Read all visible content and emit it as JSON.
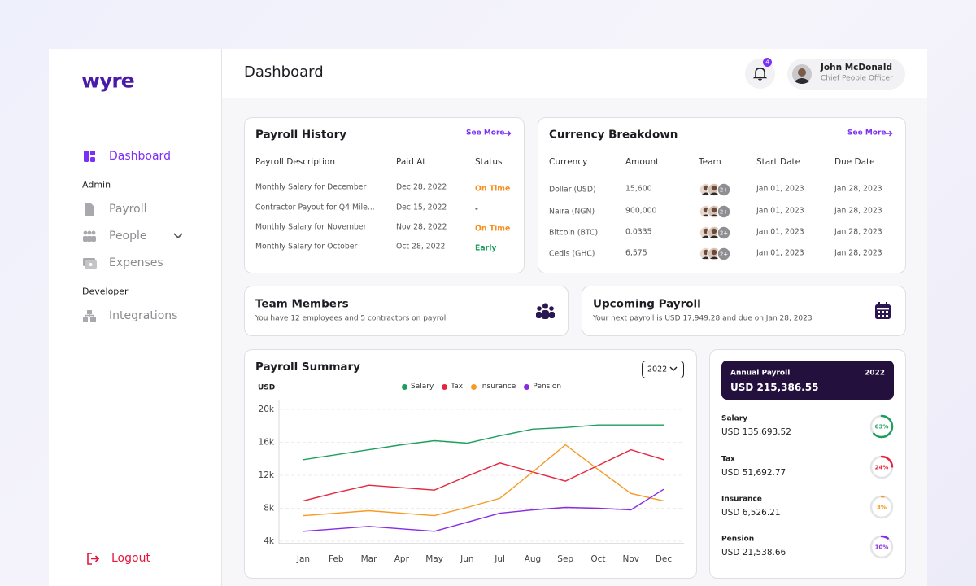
{
  "sidebar": {
    "brand": "wyre",
    "active": "Dashboard",
    "sections": [
      {
        "title": "Admin",
        "items": [
          "Payroll",
          "People",
          "Expenses"
        ]
      },
      {
        "title": "Developer",
        "items": [
          "Integrations"
        ]
      }
    ],
    "logout": "Logout"
  },
  "header": {
    "title": "Dashboard",
    "notifications": 4,
    "user": {
      "name": "John McDonald",
      "role": "Chief People Officer"
    }
  },
  "payroll_history": {
    "title": "Payroll History",
    "link": "See More",
    "columns": [
      "Payroll Description",
      "Paid At",
      "Status"
    ],
    "rows": [
      {
        "description": "Monthly Salary for December",
        "paid_at": "Dec 28, 2022",
        "status": "On Time",
        "status_color": "#f5901e"
      },
      {
        "description": "Contractor Payout for Q4 Mile...",
        "paid_at": "Dec 15, 2022",
        "status": "-",
        "status_color": "#555555"
      },
      {
        "description": "Monthly Salary for November",
        "paid_at": "Nov 28, 2022",
        "status": "On Time",
        "status_color": "#f5901e"
      },
      {
        "description": "Monthly Salary for October",
        "paid_at": "Oct 28, 2022",
        "status": "Early",
        "status_color": "#1e9e5e"
      }
    ]
  },
  "currency_breakdown": {
    "title": "Currency Breakdown",
    "link": "See More",
    "columns": [
      "Currency",
      "Amount",
      "Team",
      "Start Date",
      "Due Date"
    ],
    "rows": [
      {
        "currency": "Dollar (USD)",
        "amount": "15,600",
        "team": "2+",
        "start_date": "Jan 01, 2023",
        "due_date": "Jan 28, 2023"
      },
      {
        "currency": "Naira (NGN)",
        "amount": "900,000",
        "team": "2+",
        "start_date": "Jan 01, 2023",
        "due_date": "Jan 28, 2023"
      },
      {
        "currency": "Bitcoin (BTC)",
        "amount": "0.0335",
        "team": "2+",
        "start_date": "Jan 01, 2023",
        "due_date": "Jan 28, 2023"
      },
      {
        "currency": "Cedis (GHC)",
        "amount": "6,575",
        "team": "2+",
        "start_date": "Jan 01, 2023",
        "due_date": "Jan 28, 2023"
      }
    ]
  },
  "team_members": {
    "title": "Team Members",
    "text": "You have 12 employees and 5 contractors on payroll"
  },
  "upcoming_payroll": {
    "title": "Upcoming Payroll",
    "text": "Your next payroll is USD 17,949.28 and due on Jan 28, 2023"
  },
  "payroll_summary": {
    "year": "2022"
  },
  "chart_data": {
    "type": "line",
    "title": "Payroll Summary",
    "y_label": "USD",
    "categories": [
      "Jan",
      "Feb",
      "Mar",
      "Apr",
      "May",
      "Jun",
      "Jul",
      "Aug",
      "Sep",
      "Oct",
      "Nov",
      "Dec"
    ],
    "series": [
      {
        "name": "Salary",
        "color": "#1e9e5e",
        "values": [
          13900,
          14500,
          15100,
          15700,
          16200,
          15900,
          16800,
          17600,
          17800,
          18100,
          18100,
          18100
        ]
      },
      {
        "name": "Tax",
        "color": "#e5263f",
        "values": [
          8900,
          9900,
          10800,
          10500,
          10200,
          11900,
          13500,
          12400,
          11300,
          13200,
          15100,
          13900
        ]
      },
      {
        "name": "Insurance",
        "color": "#f59a23",
        "values": [
          7100,
          7400,
          7700,
          7400,
          7100,
          8100,
          9200,
          12400,
          15700,
          12700,
          9800,
          8900
        ]
      },
      {
        "name": "Pension",
        "color": "#8a2be2",
        "values": [
          5200,
          5500,
          5800,
          5500,
          5200,
          6300,
          7400,
          7800,
          8100,
          8000,
          7800,
          10300
        ]
      }
    ],
    "ylim": [
      4000,
      20000
    ],
    "yticks": [
      {
        "value": 4000,
        "label": "4k"
      },
      {
        "value": 8000,
        "label": "8k"
      },
      {
        "value": 12000,
        "label": "12k"
      },
      {
        "value": 16000,
        "label": "16k"
      },
      {
        "value": 20000,
        "label": "20k"
      }
    ],
    "grid": true
  },
  "annual_payroll": {
    "title": "Annual Payroll",
    "year": "2022",
    "total": "USD 215,386.55",
    "items": [
      {
        "name": "Salary",
        "amount": "USD 135,693.52",
        "percent": 63,
        "percent_label": "63%",
        "color": "#1e9e5e"
      },
      {
        "name": "Tax",
        "amount": "USD 51,692.77",
        "percent": 24,
        "percent_label": "24%",
        "color": "#e5263f"
      },
      {
        "name": "Insurance",
        "amount": "USD 6,526.21",
        "percent": 3,
        "percent_label": "3%",
        "color": "#f59a23"
      },
      {
        "name": "Pension",
        "amount": "USD 21,538.66",
        "percent": 10,
        "percent_label": "10%",
        "color": "#8a2be2"
      }
    ]
  }
}
